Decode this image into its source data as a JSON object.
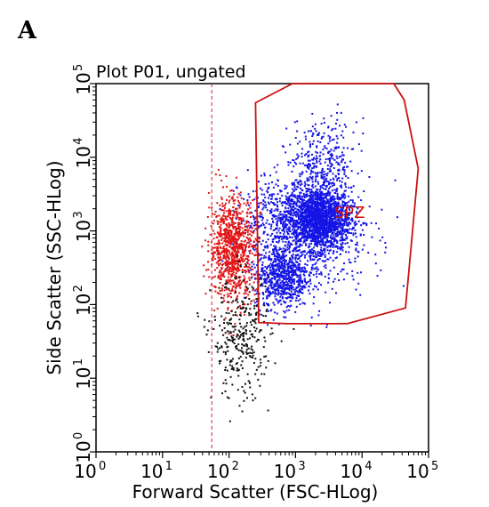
{
  "figure": {
    "panel_label": "A"
  },
  "chart_data": {
    "type": "scatter",
    "title": "Plot P01, ungated",
    "xlabel": "Forward Scatter (FSC-HLog)",
    "ylabel": "Side Scatter (SSC-HLog)",
    "x_scale": "log",
    "y_scale": "log",
    "xlim": [
      1,
      100000
    ],
    "ylim": [
      1,
      100000
    ],
    "x_ticks": [
      {
        "base": "10",
        "exp": "0",
        "value": 1
      },
      {
        "base": "10",
        "exp": "1",
        "value": 10
      },
      {
        "base": "10",
        "exp": "2",
        "value": 100
      },
      {
        "base": "10",
        "exp": "3",
        "value": 1000
      },
      {
        "base": "10",
        "exp": "4",
        "value": 10000
      },
      {
        "base": "10",
        "exp": "5",
        "value": 100000
      }
    ],
    "y_ticks": [
      {
        "base": "10",
        "exp": "0",
        "value": 1
      },
      {
        "base": "10",
        "exp": "1",
        "value": 10
      },
      {
        "base": "10",
        "exp": "2",
        "value": 100
      },
      {
        "base": "10",
        "exp": "3",
        "value": 1000
      },
      {
        "base": "10",
        "exp": "4",
        "value": 10000
      },
      {
        "base": "10",
        "exp": "5",
        "value": 100000
      }
    ],
    "threshold_line": {
      "x": 55,
      "style": "dashed",
      "color": "#cc2233"
    },
    "gate": {
      "label": "SPZ",
      "color": "#cc1111",
      "polygon": [
        [
          250,
          55000
        ],
        [
          900,
          100000
        ],
        [
          30000,
          100000
        ],
        [
          43000,
          60000
        ],
        [
          70000,
          7000
        ],
        [
          45000,
          90
        ],
        [
          6000,
          55
        ],
        [
          750,
          55
        ],
        [
          280,
          57
        ]
      ]
    },
    "series": [
      {
        "color": "#1414e6",
        "clusters": [
          {
            "x": 2200,
            "y": 1500,
            "n": 1700,
            "sx": 0.24,
            "sy": 0.21
          },
          {
            "x": 600,
            "y": 250,
            "n": 700,
            "sx": 0.2,
            "sy": 0.22
          },
          {
            "x": 1500,
            "y": 900,
            "n": 650,
            "sx": 0.45,
            "sy": 0.4
          },
          {
            "x": 2600,
            "y": 9000,
            "n": 300,
            "sx": 0.25,
            "sy": 0.28
          },
          {
            "x": 700,
            "y": 1800,
            "n": 300,
            "sx": 0.35,
            "sy": 0.25
          }
        ]
      },
      {
        "color": "#e01515",
        "clusters": [
          {
            "x": 110,
            "y": 600,
            "n": 900,
            "sx": 0.17,
            "sy": 0.35
          }
        ]
      },
      {
        "color": "#111111",
        "clusters": [
          {
            "x": 150,
            "y": 35,
            "n": 320,
            "sx": 0.22,
            "sy": 0.4
          }
        ]
      }
    ]
  }
}
